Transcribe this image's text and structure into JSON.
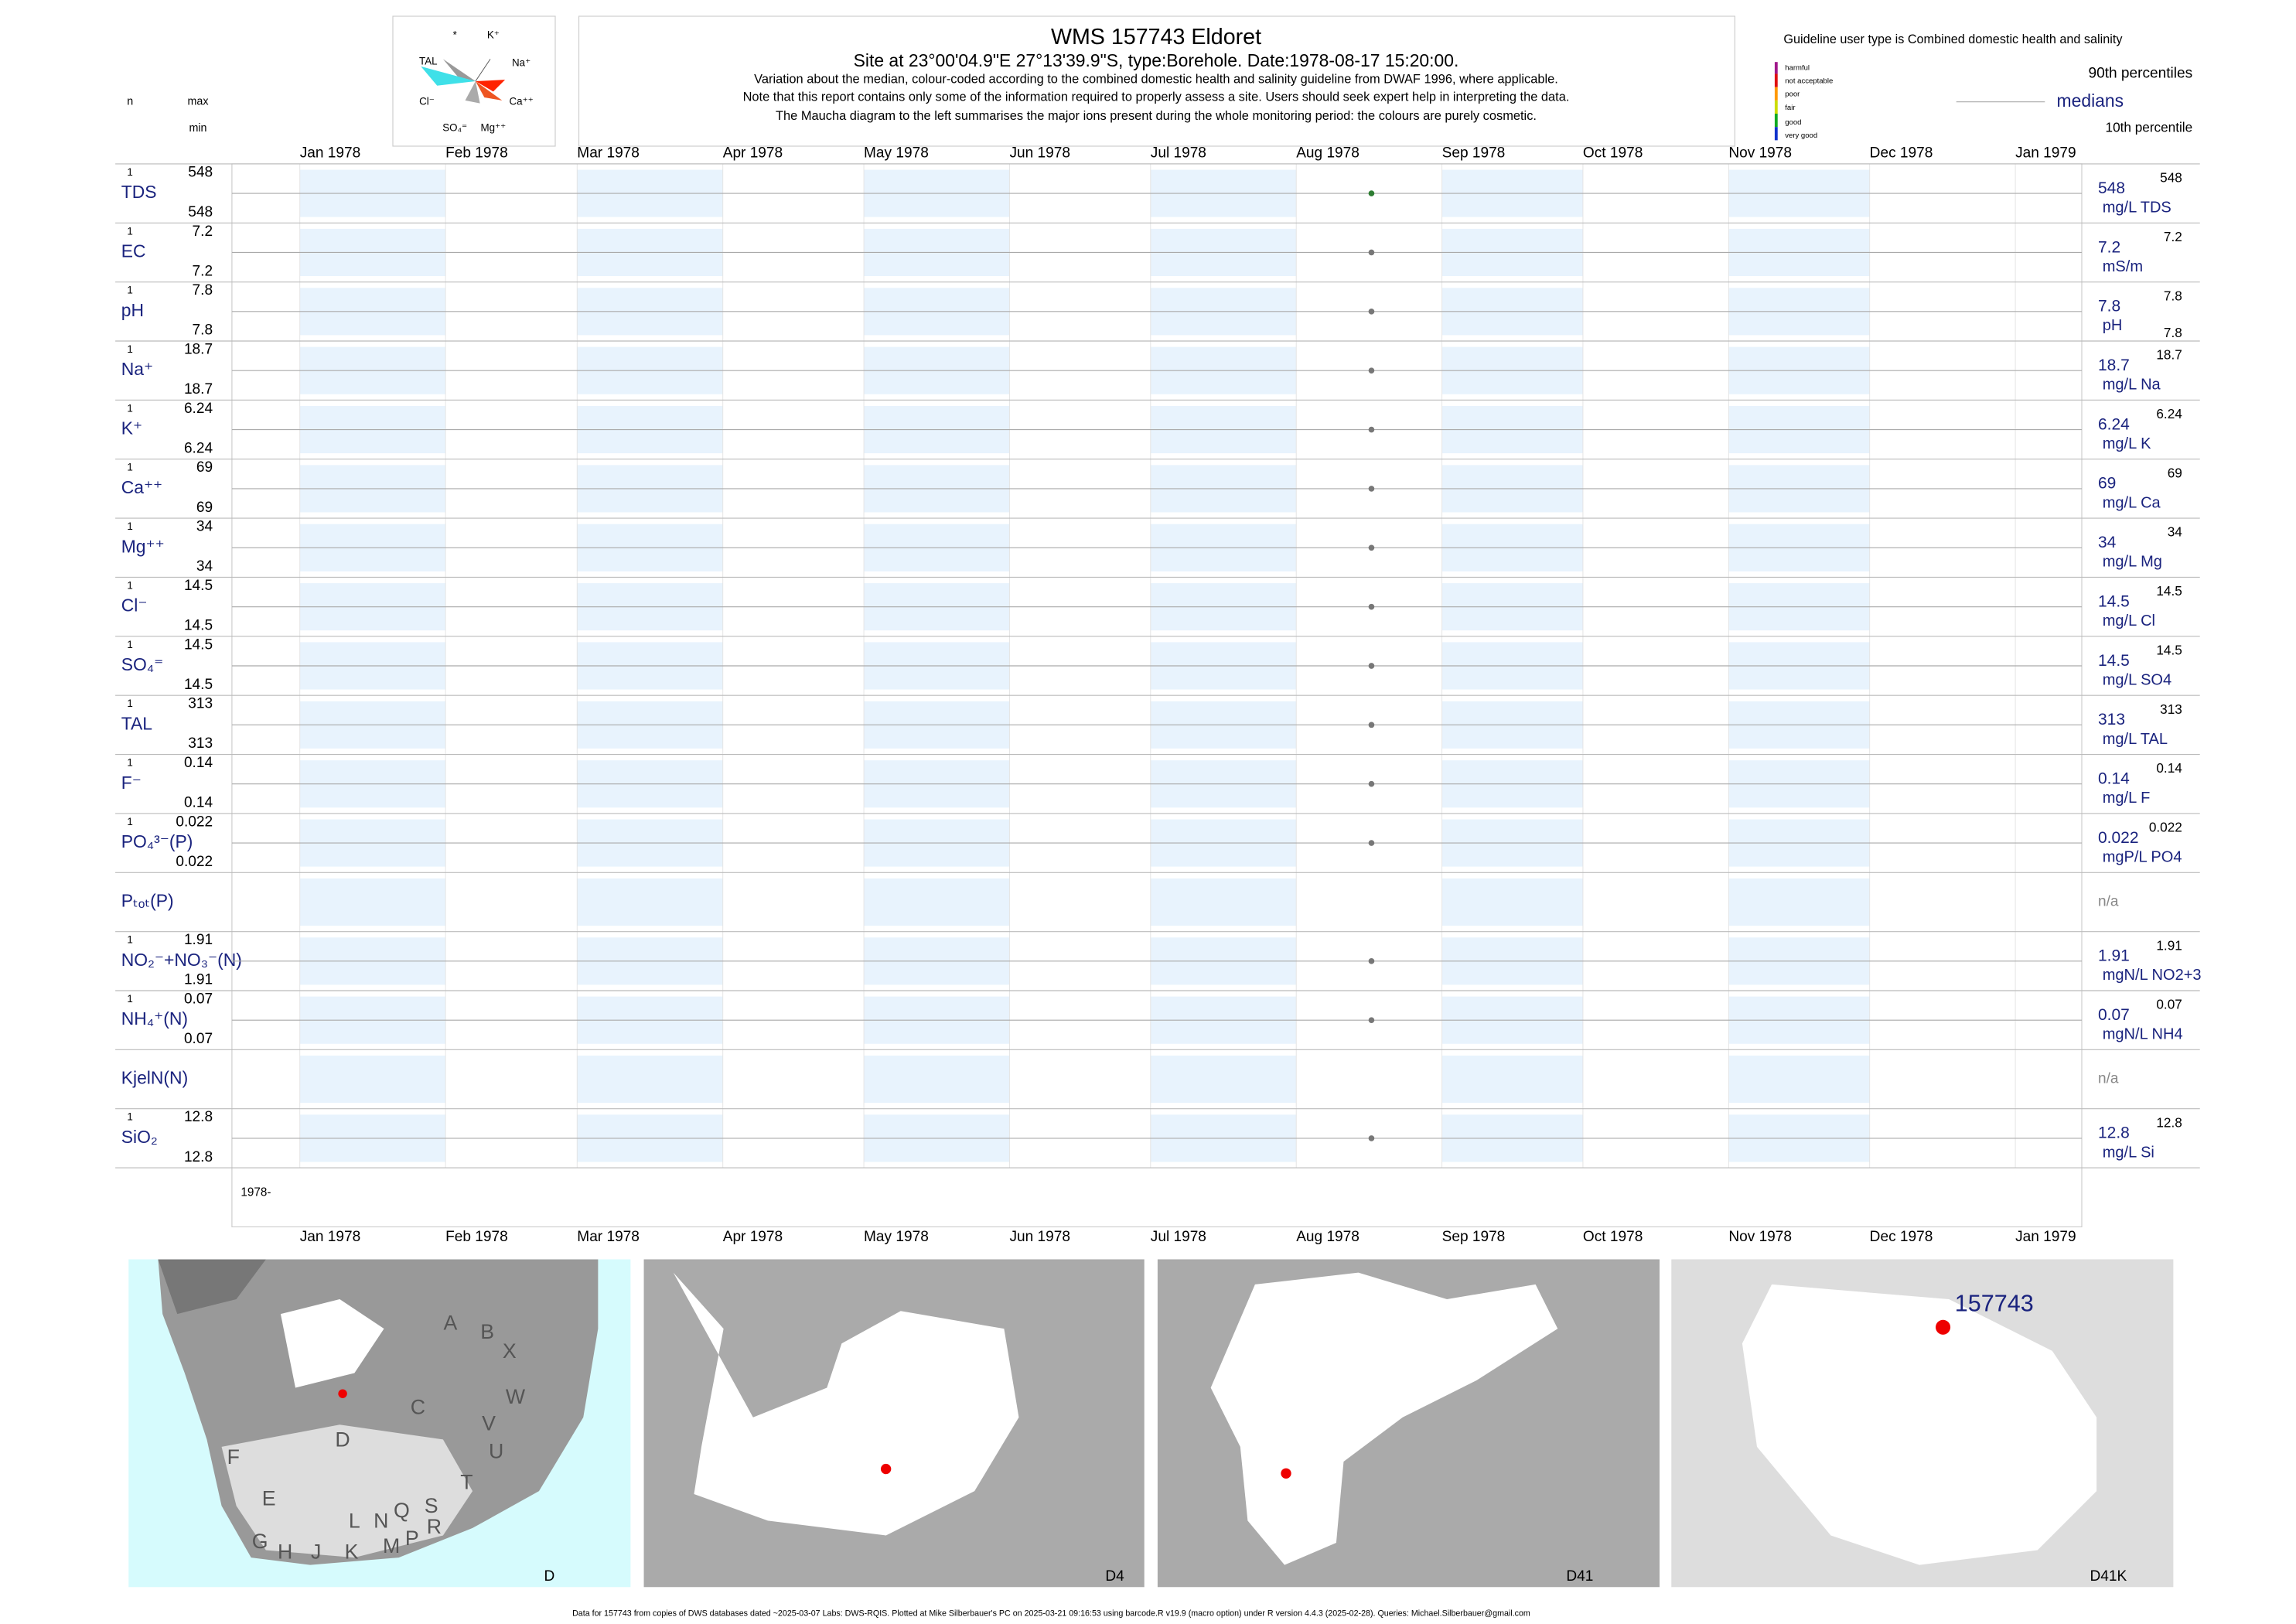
{
  "header": {
    "title": "WMS 157743  Eldoret",
    "subtitle": "Site at 23°00'04.9\"E 27°13'39.9\"S, type:Borehole. Date:1978-08-17 15:20:00.",
    "notes": [
      "Variation about the median,  colour-coded according to the combined domestic health and salinity guideline from DWAF 1996, where applicable.",
      "Note that this report contains only some of the information required to properly assess a site. Users should seek expert help in interpreting the data.",
      "The Maucha diagram to the left summarises the major ions present during the whole monitoring period: the colours are purely cosmetic."
    ],
    "guideline": "Guideline user type is Combined domestic health and salinity",
    "scale": [
      "harmful",
      "not acceptable",
      "poor",
      "fair",
      "good",
      "very good"
    ],
    "p90_label": "90th percentiles",
    "median_label": "medians",
    "p10_label": "10th percentile",
    "n_label": "n",
    "max_label": "max",
    "min_label": "min"
  },
  "maucha": {
    "labels": [
      "*",
      "K⁺",
      "TAL",
      "Na⁺",
      "Cl⁻",
      "Ca⁺⁺",
      "SO₄⁼",
      "Mg⁺⁺"
    ]
  },
  "chart_data": {
    "type": "strip",
    "year_label": "1978-",
    "sample_date": "1978-08-17",
    "xlim": [
      "1978-01-01",
      "1979-01-01"
    ],
    "xticks": [
      {
        "value": "1978-01-01",
        "label": "Jan 1978"
      },
      {
        "value": "1978-02-01",
        "label": "Feb 1978"
      },
      {
        "value": "1978-03-01",
        "label": "Mar 1978"
      },
      {
        "value": "1978-04-01",
        "label": "Apr 1978"
      },
      {
        "value": "1978-05-01",
        "label": "May 1978"
      },
      {
        "value": "1978-06-01",
        "label": "Jun 1978"
      },
      {
        "value": "1978-07-01",
        "label": "Jul 1978"
      },
      {
        "value": "1978-08-01",
        "label": "Aug 1978"
      },
      {
        "value": "1978-09-01",
        "label": "Sep 1978"
      },
      {
        "value": "1978-10-01",
        "label": "Oct 1978"
      },
      {
        "value": "1978-11-01",
        "label": "Nov 1978"
      },
      {
        "value": "1978-12-01",
        "label": "Dec 1978"
      },
      {
        "value": "1979-01-01",
        "label": "Jan 1979"
      }
    ],
    "rows": [
      {
        "name": "TDS",
        "n": 1,
        "max": 548,
        "min": 548,
        "value": 548,
        "p90": 548,
        "unit": "mg/L TDS",
        "color": "#2e7d32"
      },
      {
        "name": "EC",
        "n": 1,
        "max": 7.2,
        "min": 7.2,
        "value": 7.2,
        "p90": 7.2,
        "unit": "mS/m",
        "color": "#777777"
      },
      {
        "name": "pH",
        "n": 1,
        "max": 7.8,
        "min": 7.8,
        "value": 7.8,
        "p90": 7.8,
        "p10": 7.8,
        "unit": "pH",
        "color": "#777777"
      },
      {
        "name": "Na⁺",
        "n": 1,
        "max": 18.7,
        "min": 18.7,
        "value": 18.7,
        "p90": 18.7,
        "unit": "mg/L Na",
        "color": "#777777"
      },
      {
        "name": "K⁺",
        "n": 1,
        "max": 6.24,
        "min": 6.24,
        "value": 6.24,
        "p90": 6.24,
        "unit": "mg/L K",
        "color": "#777777"
      },
      {
        "name": "Ca⁺⁺",
        "n": 1,
        "max": 69,
        "min": 69,
        "value": 69,
        "p90": 69,
        "unit": "mg/L Ca",
        "color": "#777777"
      },
      {
        "name": "Mg⁺⁺",
        "n": 1,
        "max": 34,
        "min": 34,
        "value": 34,
        "p90": 34,
        "unit": "mg/L Mg",
        "color": "#777777"
      },
      {
        "name": "Cl⁻",
        "n": 1,
        "max": 14.5,
        "min": 14.5,
        "value": 14.5,
        "p90": 14.5,
        "unit": "mg/L Cl",
        "color": "#777777"
      },
      {
        "name": "SO₄⁼",
        "n": 1,
        "max": 14.5,
        "min": 14.5,
        "value": 14.5,
        "p90": 14.5,
        "unit": "mg/L SO4",
        "color": "#777777"
      },
      {
        "name": "TAL",
        "n": 1,
        "max": 313,
        "min": 313,
        "value": 313,
        "p90": 313,
        "unit": "mg/L TAL",
        "color": "#777777"
      },
      {
        "name": "F⁻",
        "n": 1,
        "max": 0.14,
        "min": 0.14,
        "value": 0.14,
        "p90": 0.14,
        "unit": "mg/L F",
        "color": "#777777"
      },
      {
        "name": "PO₄³⁻(P)",
        "n": 1,
        "max": 0.022,
        "min": 0.022,
        "value": 0.022,
        "p90": 0.022,
        "unit": "mgP/L PO4",
        "color": "#777777"
      },
      {
        "name": "Pₜₒₜ(P)",
        "value": null,
        "status": "n/a"
      },
      {
        "name": "NO₂⁻+NO₃⁻(N)",
        "n": 1,
        "max": 1.91,
        "min": 1.91,
        "value": 1.91,
        "p90": 1.91,
        "unit": "mgN/L NO2+3",
        "color": "#777777"
      },
      {
        "name": "NH₄⁺(N)",
        "n": 1,
        "max": 0.07,
        "min": 0.07,
        "value": 0.07,
        "p90": 0.07,
        "unit": "mgN/L NH4",
        "color": "#777777"
      },
      {
        "name": "KjelN(N)",
        "value": null,
        "status": "n/a"
      },
      {
        "name": "SiO₂",
        "n": 1,
        "max": 12.8,
        "min": 12.8,
        "value": 12.8,
        "p90": 12.8,
        "unit": "mg/L Si",
        "color": "#777777"
      }
    ]
  },
  "maps": [
    {
      "label": "D",
      "letters": [
        "A",
        "B",
        "X",
        "C",
        "W",
        "V",
        "U",
        "D",
        "F",
        "E",
        "T",
        "S",
        "R",
        "Q",
        "P",
        "N",
        "M",
        "L",
        "K",
        "J",
        "H",
        "G"
      ]
    },
    {
      "label": "D4"
    },
    {
      "label": "D41"
    },
    {
      "label": "D41K",
      "site": "157743"
    }
  ],
  "footer": "Data for 157743 from copies of DWS databases dated ~2025-03-07 Labs: DWS-RQIS. Plotted at Mike Silberbauer's PC on 2025-03-21 09:16:53 using barcode.R v19.9 (macro option) under R version 4.4.3 (2025-02-28). Queries: Michael.Silberbauer@gmail.com"
}
